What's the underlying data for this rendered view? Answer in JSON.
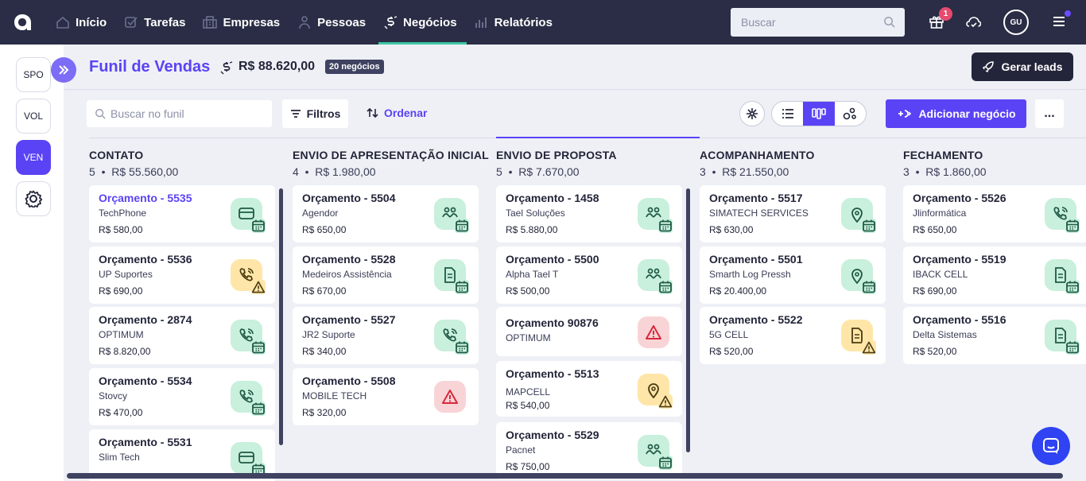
{
  "topbar": {
    "nav": [
      {
        "label": "Início",
        "icon": "home-icon"
      },
      {
        "label": "Tarefas",
        "icon": "check-icon"
      },
      {
        "label": "Empresas",
        "icon": "building-icon"
      },
      {
        "label": "Pessoas",
        "icon": "person-icon"
      },
      {
        "label": "Negócios",
        "icon": "money-icon"
      },
      {
        "label": "Relatórios",
        "icon": "chart-icon"
      }
    ],
    "search_placeholder": "Buscar",
    "gift_badge": "1",
    "avatar_initials": "GU"
  },
  "sidebar": {
    "items": [
      "SPO",
      "VOL",
      "VEN"
    ]
  },
  "header": {
    "title": "Funil de Vendas",
    "total": "R$ 88.620,00",
    "deal_count": "20 negócios",
    "gerar_label": "Gerar leads"
  },
  "toolbar": {
    "search_placeholder": "Buscar no funil",
    "filtros_label": "Filtros",
    "ordenar_label": "Ordenar",
    "add_label": "Adicionar negócio",
    "more_label": "..."
  },
  "colors": {
    "accent": "#5a43f5",
    "topbar": "#2a2d45",
    "success": "#c8f0dc",
    "warning": "#ffe6a8",
    "danger": "#f9d4d6"
  },
  "columns": [
    {
      "name": "CONTATO",
      "count": "5",
      "total": "R$ 55.560,00",
      "cards": [
        {
          "title": "Orçamento - 5535",
          "company": "TechPhone",
          "value": "R$ 580,00",
          "status": "green",
          "icon": "mail-icon",
          "sub": "calendar-icon",
          "link": true
        },
        {
          "title": "Orçamento - 5536",
          "company": "UP Suportes",
          "value": "R$ 690,00",
          "status": "yellow",
          "icon": "phone-icon",
          "sub": "warning-icon"
        },
        {
          "title": "Orçamento - 2874",
          "company": "OPTIMUM",
          "value": "R$ 8.820,00",
          "status": "green",
          "icon": "phone-icon",
          "sub": "calendar-icon"
        },
        {
          "title": "Orçamento - 5534",
          "company": "Stovcy",
          "value": "R$ 470,00",
          "status": "green",
          "icon": "phone-icon",
          "sub": "calendar-icon"
        },
        {
          "title": "Orçamento - 5531",
          "company": "Slim Tech",
          "value": "",
          "status": "green",
          "icon": "mail-icon",
          "sub": "calendar-icon"
        }
      ]
    },
    {
      "name": "ENVIO DE APRESENTAÇÃO INICIAL",
      "count": "4",
      "total": "R$ 1.980,00",
      "cards": [
        {
          "title": "Orçamento - 5504",
          "company": "Agendor",
          "value": "R$ 650,00",
          "status": "green",
          "icon": "meeting-icon",
          "sub": "calendar-icon"
        },
        {
          "title": "Orçamento - 5528",
          "company": "Medeiros Assistência",
          "value": "R$ 670,00",
          "status": "green",
          "icon": "document-icon",
          "sub": "calendar-icon"
        },
        {
          "title": "Orçamento - 5527",
          "company": "JR2 Suporte",
          "value": "R$ 340,00",
          "status": "green",
          "icon": "phone-icon",
          "sub": "calendar-icon"
        },
        {
          "title": "Orçamento - 5508",
          "company": "MOBILE TECH",
          "value": "R$ 320,00",
          "status": "red",
          "icon": "warning-icon",
          "sub": ""
        }
      ]
    },
    {
      "name": "ENVIO DE PROPOSTA",
      "count": "5",
      "total": "R$ 7.670,00",
      "cards": [
        {
          "title": "Orçamento - 1458",
          "company": "Tael Soluções",
          "value": "R$ 5.880,00",
          "status": "green",
          "icon": "meeting-icon",
          "sub": "calendar-icon"
        },
        {
          "title": "Orçamento - 5500",
          "company": "Alpha Tael T",
          "value": "R$ 500,00",
          "status": "green",
          "icon": "meeting-icon",
          "sub": "calendar-icon"
        },
        {
          "title": "Orçamento 90876",
          "company": "OPTIMUM",
          "value": "",
          "status": "red",
          "icon": "warning-icon",
          "sub": ""
        },
        {
          "title": "Orçamento - 5513",
          "company": "MAPCELL",
          "value": "R$ 540,00",
          "status": "yellow",
          "icon": "pin-icon",
          "sub": "warning-icon"
        },
        {
          "title": "Orçamento - 5529",
          "company": "Pacnet",
          "value": "R$ 750,00",
          "status": "green",
          "icon": "meeting-icon",
          "sub": "calendar-icon"
        }
      ]
    },
    {
      "name": "ACOMPANHAMENTO",
      "count": "3",
      "total": "R$ 21.550,00",
      "cards": [
        {
          "title": "Orçamento - 5517",
          "company": "SIMATECH SERVICES",
          "value": "R$ 630,00",
          "status": "green",
          "icon": "pin-icon",
          "sub": "calendar-icon"
        },
        {
          "title": "Orçamento - 5501",
          "company": "Smarth Log Pressh",
          "value": "R$ 20.400,00",
          "status": "green",
          "icon": "pin-icon",
          "sub": "calendar-icon"
        },
        {
          "title": "Orçamento - 5522",
          "company": "5G CELL",
          "value": "R$ 520,00",
          "status": "yellow",
          "icon": "document-icon",
          "sub": "warning-icon"
        }
      ]
    },
    {
      "name": "FECHAMENTO",
      "count": "3",
      "total": "R$ 1.860,00",
      "cards": [
        {
          "title": "Orçamento - 5526",
          "company": "Jlinformática",
          "value": "R$ 650,00",
          "status": "green",
          "icon": "phone-icon",
          "sub": "calendar-icon"
        },
        {
          "title": "Orçamento - 5519",
          "company": "IBACK CELL",
          "value": "R$ 690,00",
          "status": "green",
          "icon": "document-icon",
          "sub": "calendar-icon"
        },
        {
          "title": "Orçamento - 5516",
          "company": "Delta Sistemas",
          "value": "R$ 520,00",
          "status": "green",
          "icon": "document-icon",
          "sub": "calendar-icon"
        }
      ]
    }
  ]
}
